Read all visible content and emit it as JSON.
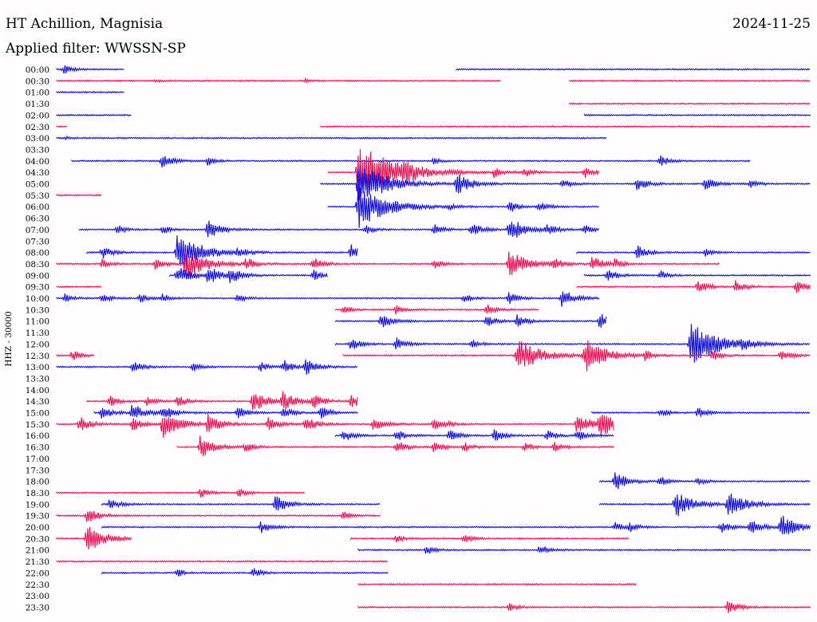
{
  "header": {
    "station": "HT Achillion, Magnisia",
    "date": "2024-11-25",
    "filter": "Applied filter: WWSSN-SP"
  },
  "chart_data": {
    "type": "line",
    "title": "HT Achillion, Magnisia",
    "subtitle": "Applied filter: WWSSN-SP",
    "date": "2024-11-25",
    "ylabel": "HHZ - 30000",
    "xlabel": "",
    "x_range_minutes": [
      0,
      30
    ],
    "colors": [
      "#1010dd",
      "#ee1155"
    ],
    "rows": [
      {
        "label": "00:00",
        "segments": [
          [
            0.0,
            0.09
          ],
          [
            0.53,
            1.0
          ]
        ],
        "events": [
          [
            0.01,
            6
          ]
        ]
      },
      {
        "label": "00:30",
        "segments": [
          [
            0.0,
            0.59
          ],
          [
            0.68,
            1.0
          ]
        ],
        "events": [
          [
            0.13,
            2
          ],
          [
            0.33,
            2
          ]
        ]
      },
      {
        "label": "01:00",
        "segments": [
          [
            0.0,
            0.09
          ]
        ],
        "events": []
      },
      {
        "label": "01:30",
        "segments": [
          [
            0.68,
            1.0
          ]
        ],
        "events": []
      },
      {
        "label": "02:00",
        "segments": [
          [
            0.0,
            0.1
          ],
          [
            0.7,
            1.0
          ]
        ],
        "events": []
      },
      {
        "label": "02:30",
        "segments": [
          [
            0.0,
            0.015
          ],
          [
            0.35,
            1.0
          ]
        ],
        "events": []
      },
      {
        "label": "03:00",
        "segments": [
          [
            0.0,
            0.73
          ]
        ],
        "events": [
          [
            0.01,
            2
          ]
        ]
      },
      {
        "label": "03:30",
        "segments": [],
        "events": []
      },
      {
        "label": "04:00",
        "segments": [
          [
            0.02,
            0.92
          ]
        ],
        "events": [
          [
            0.14,
            9
          ],
          [
            0.2,
            6
          ],
          [
            0.8,
            7
          ],
          [
            0.5,
            4
          ]
        ]
      },
      {
        "label": "04:30",
        "segments": [
          [
            0.36,
            0.72
          ]
        ],
        "events": [
          [
            0.4,
            40
          ],
          [
            0.46,
            8
          ],
          [
            0.58,
            6
          ],
          [
            0.62,
            6
          ],
          [
            0.7,
            7
          ]
        ]
      },
      {
        "label": "05:00",
        "segments": [
          [
            0.35,
            1.0
          ]
        ],
        "events": [
          [
            0.4,
            30
          ],
          [
            0.53,
            14
          ],
          [
            0.67,
            7
          ],
          [
            0.77,
            9
          ],
          [
            0.86,
            9
          ],
          [
            0.92,
            6
          ]
        ]
      },
      {
        "label": "05:30",
        "segments": [
          [
            0.0,
            0.06
          ]
        ],
        "events": []
      },
      {
        "label": "06:00",
        "segments": [
          [
            0.36,
            0.72
          ]
        ],
        "events": [
          [
            0.4,
            30
          ],
          [
            0.52,
            4
          ],
          [
            0.6,
            8
          ],
          [
            0.64,
            7
          ]
        ]
      },
      {
        "label": "06:30",
        "segments": [],
        "events": []
      },
      {
        "label": "07:00",
        "segments": [
          [
            0.03,
            0.72
          ]
        ],
        "events": [
          [
            0.08,
            6
          ],
          [
            0.14,
            6
          ],
          [
            0.2,
            12
          ],
          [
            0.41,
            6
          ],
          [
            0.5,
            7
          ],
          [
            0.55,
            9
          ],
          [
            0.6,
            16
          ],
          [
            0.65,
            7
          ],
          [
            0.7,
            6
          ]
        ]
      },
      {
        "label": "07:30",
        "segments": [],
        "events": []
      },
      {
        "label": "08:00",
        "segments": [
          [
            0.04,
            0.4
          ],
          [
            0.69,
            1.0
          ]
        ],
        "events": [
          [
            0.06,
            8
          ],
          [
            0.16,
            26
          ],
          [
            0.24,
            6
          ],
          [
            0.39,
            10
          ],
          [
            0.77,
            9
          ],
          [
            0.86,
            5
          ]
        ]
      },
      {
        "label": "08:30",
        "segments": [
          [
            0.0,
            0.88
          ]
        ],
        "events": [
          [
            0.06,
            6
          ],
          [
            0.13,
            8
          ],
          [
            0.17,
            22
          ],
          [
            0.25,
            8
          ],
          [
            0.34,
            8
          ],
          [
            0.5,
            6
          ],
          [
            0.6,
            18
          ],
          [
            0.66,
            7
          ],
          [
            0.71,
            10
          ],
          [
            0.74,
            6
          ]
        ]
      },
      {
        "label": "09:00",
        "segments": [
          [
            0.15,
            0.36
          ],
          [
            0.7,
            1.0
          ]
        ],
        "events": [
          [
            0.16,
            12
          ],
          [
            0.2,
            12
          ],
          [
            0.23,
            10
          ],
          [
            0.34,
            7
          ],
          [
            0.73,
            8
          ],
          [
            0.8,
            6
          ]
        ]
      },
      {
        "label": "09:30",
        "segments": [
          [
            0.0,
            0.06
          ],
          [
            0.69,
            1.0
          ]
        ],
        "events": [
          [
            0.85,
            10
          ],
          [
            0.9,
            8
          ],
          [
            0.98,
            9
          ]
        ]
      },
      {
        "label": "10:00",
        "segments": [
          [
            0.0,
            0.72
          ]
        ],
        "events": [
          [
            0.01,
            6
          ],
          [
            0.06,
            6
          ],
          [
            0.11,
            6
          ],
          [
            0.14,
            6
          ],
          [
            0.24,
            6
          ],
          [
            0.54,
            6
          ],
          [
            0.6,
            8
          ],
          [
            0.67,
            12
          ]
        ]
      },
      {
        "label": "10:30",
        "segments": [
          [
            0.37,
            0.64
          ]
        ],
        "events": [
          [
            0.38,
            6
          ],
          [
            0.45,
            6
          ],
          [
            0.57,
            7
          ]
        ]
      },
      {
        "label": "11:00",
        "segments": [
          [
            0.37,
            0.73
          ]
        ],
        "events": [
          [
            0.43,
            10
          ],
          [
            0.57,
            8
          ],
          [
            0.61,
            8
          ],
          [
            0.72,
            10
          ]
        ]
      },
      {
        "label": "11:30",
        "segments": [],
        "events": []
      },
      {
        "label": "12:00",
        "segments": [
          [
            0.37,
            1.0
          ]
        ],
        "events": [
          [
            0.39,
            8
          ],
          [
            0.45,
            8
          ],
          [
            0.55,
            6
          ],
          [
            0.84,
            30
          ],
          [
            0.91,
            6
          ]
        ]
      },
      {
        "label": "12:30",
        "segments": [
          [
            0.0,
            0.05
          ],
          [
            0.38,
            1.0
          ]
        ],
        "events": [
          [
            0.02,
            7
          ],
          [
            0.61,
            24
          ],
          [
            0.7,
            22
          ],
          [
            0.78,
            6
          ],
          [
            0.87,
            7
          ],
          [
            0.96,
            8
          ]
        ]
      },
      {
        "label": "13:00",
        "segments": [
          [
            0.0,
            0.4
          ]
        ],
        "events": [
          [
            0.1,
            8
          ],
          [
            0.18,
            6
          ],
          [
            0.27,
            6
          ],
          [
            0.3,
            9
          ],
          [
            0.33,
            10
          ]
        ]
      },
      {
        "label": "13:30",
        "segments": [],
        "events": []
      },
      {
        "label": "14:00",
        "segments": [],
        "events": []
      },
      {
        "label": "14:30",
        "segments": [
          [
            0.04,
            0.4
          ]
        ],
        "events": [
          [
            0.07,
            7
          ],
          [
            0.12,
            6
          ],
          [
            0.16,
            8
          ],
          [
            0.26,
            14
          ],
          [
            0.3,
            12
          ],
          [
            0.34,
            9
          ],
          [
            0.39,
            10
          ]
        ]
      },
      {
        "label": "15:00",
        "segments": [
          [
            0.05,
            0.4
          ],
          [
            0.71,
            1.0
          ]
        ],
        "events": [
          [
            0.06,
            9
          ],
          [
            0.1,
            12
          ],
          [
            0.14,
            10
          ],
          [
            0.24,
            8
          ],
          [
            0.3,
            8
          ],
          [
            0.35,
            8
          ],
          [
            0.8,
            6
          ],
          [
            0.85,
            7
          ]
        ]
      },
      {
        "label": "15:30",
        "segments": [
          [
            0.0,
            0.74
          ]
        ],
        "events": [
          [
            0.03,
            10
          ],
          [
            0.1,
            9
          ],
          [
            0.14,
            18
          ],
          [
            0.2,
            12
          ],
          [
            0.28,
            9
          ],
          [
            0.33,
            10
          ],
          [
            0.42,
            10
          ],
          [
            0.5,
            10
          ],
          [
            0.69,
            14
          ],
          [
            0.72,
            16
          ]
        ]
      },
      {
        "label": "16:00",
        "segments": [
          [
            0.37,
            0.74
          ]
        ],
        "events": [
          [
            0.38,
            8
          ],
          [
            0.45,
            8
          ],
          [
            0.52,
            8
          ],
          [
            0.58,
            8
          ],
          [
            0.65,
            7
          ],
          [
            0.69,
            7
          ]
        ]
      },
      {
        "label": "16:30",
        "segments": [
          [
            0.16,
            0.74
          ]
        ],
        "events": [
          [
            0.19,
            14
          ],
          [
            0.25,
            6
          ],
          [
            0.45,
            9
          ],
          [
            0.5,
            8
          ],
          [
            0.54,
            6
          ],
          [
            0.62,
            6
          ],
          [
            0.66,
            6
          ]
        ]
      },
      {
        "label": "17:00",
        "segments": [],
        "events": []
      },
      {
        "label": "17:30",
        "segments": [],
        "events": []
      },
      {
        "label": "18:00",
        "segments": [
          [
            0.72,
            1.0
          ]
        ],
        "events": [
          [
            0.74,
            12
          ],
          [
            0.8,
            6
          ],
          [
            0.85,
            5
          ]
        ]
      },
      {
        "label": "18:30",
        "segments": [
          [
            0.0,
            0.33
          ]
        ],
        "events": [
          [
            0.19,
            7
          ],
          [
            0.24,
            6
          ]
        ]
      },
      {
        "label": "19:00",
        "segments": [
          [
            0.06,
            0.43
          ],
          [
            0.72,
            1.0
          ]
        ],
        "events": [
          [
            0.07,
            8
          ],
          [
            0.29,
            12
          ],
          [
            0.82,
            18
          ],
          [
            0.89,
            18
          ]
        ]
      },
      {
        "label": "19:30",
        "segments": [
          [
            0.0,
            0.43
          ]
        ],
        "events": [
          [
            0.04,
            10
          ],
          [
            0.38,
            6
          ]
        ]
      },
      {
        "label": "20:00",
        "segments": [
          [
            0.06,
            1.0
          ]
        ],
        "events": [
          [
            0.27,
            8
          ],
          [
            0.74,
            6
          ],
          [
            0.76,
            6
          ],
          [
            0.88,
            8
          ],
          [
            0.92,
            10
          ],
          [
            0.96,
            16
          ]
        ]
      },
      {
        "label": "20:30",
        "segments": [
          [
            0.0,
            0.1
          ],
          [
            0.39,
            0.76
          ]
        ],
        "events": [
          [
            0.04,
            18
          ],
          [
            0.45,
            5
          ],
          [
            0.54,
            6
          ]
        ]
      },
      {
        "label": "21:00",
        "segments": [
          [
            0.4,
            1.0
          ]
        ],
        "events": [
          [
            0.49,
            6
          ],
          [
            0.64,
            7
          ]
        ]
      },
      {
        "label": "21:30",
        "segments": [
          [
            0.0,
            0.44
          ]
        ],
        "events": []
      },
      {
        "label": "22:00",
        "segments": [
          [
            0.06,
            0.44
          ]
        ],
        "events": [
          [
            0.16,
            5
          ],
          [
            0.26,
            6
          ]
        ]
      },
      {
        "label": "22:30",
        "segments": [
          [
            0.4,
            0.77
          ]
        ],
        "events": []
      },
      {
        "label": "23:00",
        "segments": [],
        "events": []
      },
      {
        "label": "23:30",
        "segments": [
          [
            0.4,
            1.0
          ]
        ],
        "events": [
          [
            0.6,
            6
          ],
          [
            0.89,
            9
          ]
        ]
      }
    ]
  }
}
